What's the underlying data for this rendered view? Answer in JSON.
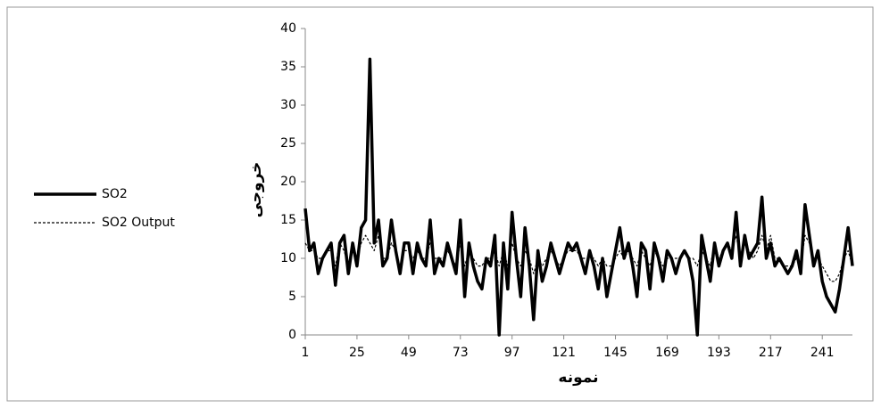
{
  "chart_data": {
    "type": "line",
    "x_label": "نمونه",
    "y_label": "خروجی",
    "x": [
      1,
      3,
      5,
      7,
      9,
      11,
      13,
      15,
      17,
      19,
      21,
      23,
      25,
      27,
      29,
      31,
      33,
      35,
      37,
      39,
      41,
      43,
      45,
      47,
      49,
      51,
      53,
      55,
      57,
      59,
      61,
      63,
      65,
      67,
      69,
      71,
      73,
      75,
      77,
      79,
      81,
      83,
      85,
      87,
      89,
      91,
      93,
      95,
      97,
      99,
      101,
      103,
      105,
      107,
      109,
      111,
      113,
      115,
      117,
      119,
      121,
      123,
      125,
      127,
      129,
      131,
      133,
      135,
      137,
      139,
      141,
      143,
      145,
      147,
      149,
      151,
      153,
      155,
      157,
      159,
      161,
      163,
      165,
      167,
      169,
      171,
      173,
      175,
      177,
      179,
      181,
      183,
      185,
      187,
      189,
      191,
      193,
      195,
      197,
      199,
      201,
      203,
      205,
      207,
      209,
      211,
      213,
      215,
      217,
      219,
      221,
      223,
      225,
      227,
      229,
      231,
      233,
      235,
      237,
      239,
      241,
      243,
      245,
      247,
      249,
      251,
      253,
      255
    ],
    "series": [
      {
        "name": "SO2",
        "color": "#000000",
        "dashed": false,
        "width": 3.5,
        "values": [
          16.5,
          11,
          12,
          8,
          10,
          11,
          12,
          6.5,
          12,
          13,
          8,
          12,
          9,
          14,
          15,
          36,
          12,
          15,
          9,
          10,
          15,
          11,
          8,
          12,
          12,
          8,
          12,
          10,
          9,
          15,
          8,
          10,
          9,
          12,
          10,
          8,
          15,
          5,
          12,
          9,
          7,
          6,
          10,
          9,
          13,
          0,
          12,
          6,
          16,
          10,
          5,
          14,
          9,
          2,
          11,
          7,
          9,
          12,
          10,
          8,
          10,
          12,
          11,
          12,
          10,
          8,
          11,
          9,
          6,
          10,
          5,
          8,
          11,
          14,
          10,
          12,
          9,
          5,
          12,
          11,
          6,
          12,
          10,
          7,
          11,
          10,
          8,
          10,
          11,
          10,
          7,
          0,
          13,
          10,
          7,
          12,
          9,
          11,
          12,
          10,
          16,
          9,
          13,
          10,
          11,
          12,
          18,
          10,
          12,
          9,
          10,
          9,
          8,
          9,
          11,
          8,
          17,
          13,
          9,
          11,
          7,
          5,
          4,
          3,
          6,
          10,
          14,
          9
        ]
      },
      {
        "name": "SO2 Output",
        "color": "#000000",
        "dashed": true,
        "width": 1.2,
        "values": [
          12,
          11,
          11,
          10,
          10,
          11,
          11,
          9,
          12,
          11,
          9,
          11,
          10,
          12,
          13,
          12,
          11,
          13,
          10,
          10,
          12,
          11,
          8,
          11,
          11,
          10,
          11,
          10,
          10,
          12,
          10,
          10,
          10,
          11,
          10,
          9,
          12,
          9,
          11,
          10,
          9,
          9,
          10,
          10,
          11,
          9,
          11,
          9,
          12,
          10,
          9,
          11,
          10,
          8,
          10,
          9,
          10,
          11,
          10,
          9,
          10,
          11,
          11,
          11,
          10,
          10,
          10,
          10,
          9,
          10,
          9,
          9,
          10,
          11,
          10,
          11,
          10,
          9,
          11,
          10,
          9,
          11,
          10,
          9,
          10,
          10,
          10,
          10,
          11,
          10,
          10,
          9,
          11,
          10,
          9,
          12,
          10,
          11,
          12,
          11,
          13,
          10,
          12,
          11,
          10,
          11,
          13,
          11,
          13,
          10,
          10,
          9,
          9,
          9,
          10,
          9,
          13,
          12,
          10,
          10,
          9,
          8,
          7,
          7,
          8,
          10,
          11,
          9
        ]
      }
    ],
    "xlim": [
      1,
      255
    ],
    "xticks": [
      1,
      25,
      49,
      73,
      97,
      121,
      145,
      169,
      193,
      217,
      241
    ],
    "ylim": [
      0,
      40
    ],
    "yticks": [
      0,
      5,
      10,
      15,
      20,
      25,
      30,
      35,
      40
    ],
    "legend": "left"
  }
}
